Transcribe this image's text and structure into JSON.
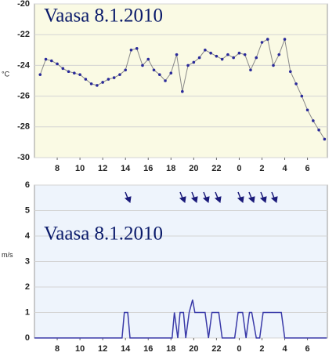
{
  "chart_data": [
    {
      "type": "line",
      "title": "Vaasa 8.1.2010",
      "y_label": "°C",
      "x": [
        6.5,
        7,
        7.5,
        8,
        8.5,
        9,
        9.5,
        10,
        10.5,
        11,
        11.5,
        12,
        12.5,
        13,
        13.5,
        14,
        14.5,
        15,
        15.5,
        16,
        16.5,
        17,
        17.5,
        18,
        18.5,
        19,
        19.5,
        20,
        20.5,
        21,
        21.5,
        22,
        22.5,
        23,
        23.5,
        24,
        24.5,
        25,
        25.5,
        26,
        26.5,
        27,
        27.5,
        28,
        28.5,
        29,
        29.5,
        30,
        30.5,
        31,
        31.5
      ],
      "series": [
        {
          "color": "#888888",
          "marker_color": "#2a2a9a",
          "values": [
            -24.6,
            -23.6,
            -23.7,
            -23.9,
            -24.2,
            -24.4,
            -24.5,
            -24.6,
            -24.9,
            -25.2,
            -25.3,
            -25.1,
            -24.9,
            -24.8,
            -24.6,
            -24.3,
            -23.0,
            -22.9,
            -24.0,
            -23.6,
            -24.3,
            -24.6,
            -25.0,
            -24.5,
            -23.3,
            -25.7,
            -24.0,
            -23.8,
            -23.5,
            -23.0,
            -23.2,
            -23.4,
            -23.6,
            -23.3,
            -23.5,
            -23.2,
            -23.3,
            -24.3,
            -23.5,
            -22.5,
            -22.3,
            -24.0,
            -23.3,
            -22.3,
            -24.4,
            -25.2,
            -26.0,
            -26.9,
            -27.6,
            -28.2,
            -28.8
          ]
        }
      ],
      "markers": true,
      "background": "#fafae4",
      "xlim": [
        6,
        31.75
      ],
      "xticks": [
        8,
        10,
        12,
        14,
        16,
        18,
        20,
        22,
        {
          "value": 24,
          "label": "0"
        },
        {
          "value": 26,
          "label": "2"
        },
        {
          "value": 28,
          "label": "4"
        },
        {
          "value": 30,
          "label": "6"
        }
      ],
      "ylim": [
        -30,
        -20
      ],
      "yticks": [
        -30,
        -28,
        -26,
        -24,
        -22,
        -20
      ],
      "grid": true
    },
    {
      "type": "line",
      "title": "Vaasa 8.1.2010",
      "y_label": "m/s",
      "x": [
        6,
        13.7,
        13.9,
        14.2,
        14.4,
        18.1,
        18.3,
        18.6,
        18.8,
        19.1,
        19.3,
        19.6,
        19.9,
        20.1,
        20.3,
        21.0,
        21.3,
        21.6,
        22.2,
        22.5,
        23.6,
        23.9,
        24.3,
        24.6,
        24.9,
        25.1,
        25.5,
        25.8,
        26.1,
        26.5,
        27.3,
        27.7,
        28.0,
        31.7
      ],
      "series": [
        {
          "color": "#3a3aa8",
          "values": [
            0,
            0,
            1,
            1,
            0,
            0,
            1,
            0,
            1,
            1,
            0,
            1,
            1.5,
            1,
            1,
            1,
            0,
            1,
            1,
            0,
            0,
            1,
            1,
            0,
            1,
            1,
            0,
            0,
            1,
            1,
            1,
            1,
            0,
            0
          ]
        }
      ],
      "markers": false,
      "background": "#eef4fc",
      "xlim": [
        6,
        31.75
      ],
      "xticks": [
        8,
        10,
        12,
        14,
        16,
        18,
        20,
        22,
        {
          "value": 24,
          "label": "0"
        },
        {
          "value": 26,
          "label": "2"
        },
        {
          "value": 28,
          "label": "4"
        },
        {
          "value": 30,
          "label": "6"
        }
      ],
      "ylim": [
        0,
        6
      ],
      "yticks": [
        0,
        1,
        2,
        3,
        4,
        5,
        6
      ],
      "grid": true
    }
  ]
}
